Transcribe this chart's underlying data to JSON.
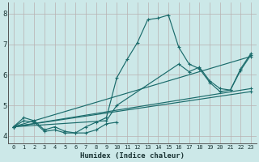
{
  "xlabel": "Humidex (Indice chaleur)",
  "bg_color": "#cce8e8",
  "grid_color": "#b8b0b0",
  "line_color": "#1a6b6b",
  "xlim": [
    -0.5,
    23.5
  ],
  "ylim": [
    3.75,
    8.35
  ],
  "xticks": [
    0,
    1,
    2,
    3,
    4,
    5,
    6,
    7,
    8,
    9,
    10,
    11,
    12,
    13,
    14,
    15,
    16,
    17,
    18,
    19,
    20,
    21,
    22,
    23
  ],
  "yticks": [
    4,
    5,
    6,
    7,
    8
  ],
  "lines": [
    {
      "x": [
        0,
        1,
        2,
        3,
        4,
        5,
        6,
        7,
        8,
        9,
        10,
        11,
        12,
        13,
        14,
        15,
        16,
        17,
        18,
        19,
        20,
        21,
        22,
        23
      ],
      "y": [
        4.3,
        4.6,
        4.5,
        4.2,
        4.3,
        4.15,
        4.1,
        4.3,
        4.45,
        4.6,
        5.9,
        6.5,
        7.05,
        7.8,
        7.85,
        7.95,
        6.9,
        6.35,
        6.2,
        5.75,
        5.45,
        5.5,
        6.2,
        6.7
      ]
    },
    {
      "x": [
        0,
        9,
        10,
        16,
        17,
        18,
        19,
        20,
        21,
        22,
        23
      ],
      "y": [
        4.3,
        4.5,
        5.0,
        6.35,
        6.1,
        6.25,
        5.8,
        5.55,
        5.5,
        6.15,
        6.65
      ]
    },
    {
      "x": [
        0,
        23
      ],
      "y": [
        4.3,
        5.45
      ]
    },
    {
      "x": [
        0,
        23
      ],
      "y": [
        4.3,
        5.55
      ]
    },
    {
      "x": [
        0,
        23
      ],
      "y": [
        4.3,
        6.6
      ]
    },
    {
      "x": [
        0,
        1,
        2,
        3,
        4,
        5,
        6,
        7,
        8,
        9,
        10
      ],
      "y": [
        4.3,
        4.5,
        4.45,
        4.15,
        4.2,
        4.1,
        4.1,
        4.1,
        4.2,
        4.4,
        4.45
      ]
    }
  ]
}
